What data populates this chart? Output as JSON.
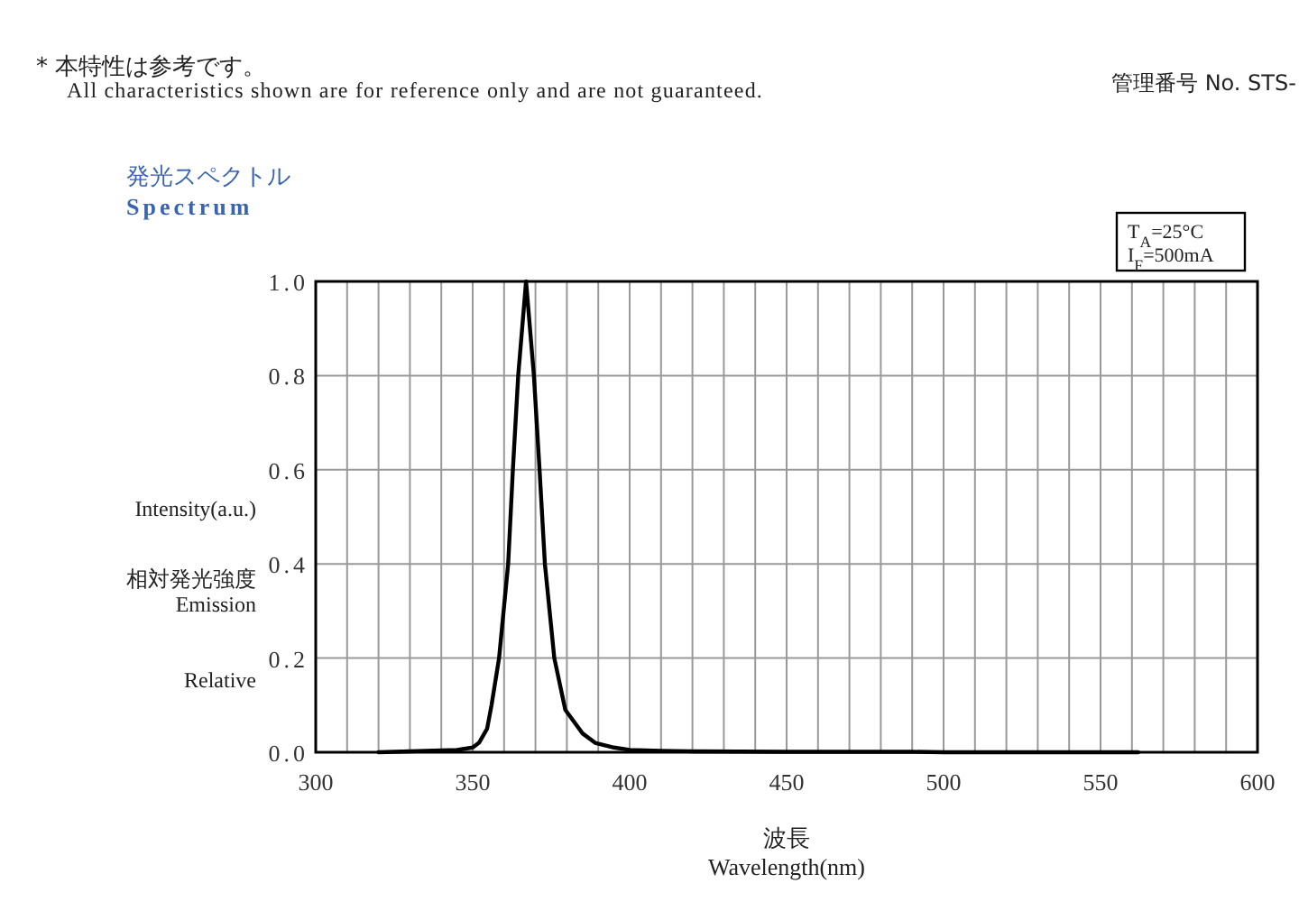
{
  "chart_data": {
    "type": "line",
    "title": "発光スペクトル",
    "subtitle": "Spectrum",
    "xlabel": "波長\nWavelength(nm)",
    "ylabel": "Intensity(a.u.)\n相対発光強度\nEmission\nRelative",
    "annotations": [
      "* 本特性は参考です。",
      "All characteristics shown are for reference only and are not guaranteed.",
      "管理番号 No. STS-",
      "T$_{A}$=25°C",
      "I$_{F}$=500mA"
    ],
    "xlim": [
      300,
      600
    ],
    "ylim": [
      0,
      1
    ],
    "xticks": [
      300,
      {
        "value": 310,
        "label": null
      },
      {
        "value": 320,
        "label": null
      },
      {
        "value": 330,
        "label": null
      },
      {
        "value": 340,
        "label": null
      },
      350,
      {
        "value": 360,
        "label": null
      },
      {
        "value": 370,
        "label": null
      },
      {
        "value": 380,
        "label": null
      },
      {
        "value": 390,
        "label": null
      },
      400,
      {
        "value": 410,
        "label": null
      },
      {
        "value": 420,
        "label": null
      },
      {
        "value": 430,
        "label": null
      },
      {
        "value": 440,
        "label": null
      },
      450,
      {
        "value": 460,
        "label": null
      },
      {
        "value": 470,
        "label": null
      },
      {
        "value": 480,
        "label": null
      },
      {
        "value": 490,
        "label": null
      },
      500,
      {
        "value": 510,
        "label": null
      },
      {
        "value": 520,
        "label": null
      },
      {
        "value": 530,
        "label": null
      },
      {
        "value": 540,
        "label": null
      },
      550,
      {
        "value": 560,
        "label": null
      },
      {
        "value": 570,
        "label": null
      },
      {
        "value": 580,
        "label": null
      },
      {
        "value": 590,
        "label": null
      },
      600
    ],
    "yticks": [
      {
        "value": 0,
        "label": "0.0"
      },
      {
        "value": 0.2,
        "label": "0.2"
      },
      {
        "value": 0.4,
        "label": "0.4"
      },
      {
        "value": 0.6,
        "label": "0.6"
      },
      {
        "value": 0.8,
        "label": "0.8"
      },
      {
        "value": 1,
        "label": "1.0"
      }
    ],
    "grid": true,
    "marker": "none",
    "line_style": "solid",
    "series": [
      {
        "color": "#000000",
        "x": [
          320,
          330,
          340,
          345,
          350,
          352,
          354.6,
          356,
          358.4,
          361.3,
          362.8,
          364.5,
          367,
          369.5,
          371.3,
          373,
          376,
          379.5,
          385,
          389,
          395,
          400,
          410,
          420,
          450,
          490,
          500,
          530,
          562
        ],
        "values": [
          0,
          0.002,
          0.004,
          0.005,
          0.01,
          0.02,
          0.05,
          0.1,
          0.2,
          0.4,
          0.6,
          0.8,
          1.0,
          0.8,
          0.6,
          0.4,
          0.2,
          0.09,
          0.04,
          0.02,
          0.01,
          0.005,
          0.003,
          0.002,
          0.001,
          0.001,
          0,
          0,
          0
        ]
      }
    ]
  }
}
